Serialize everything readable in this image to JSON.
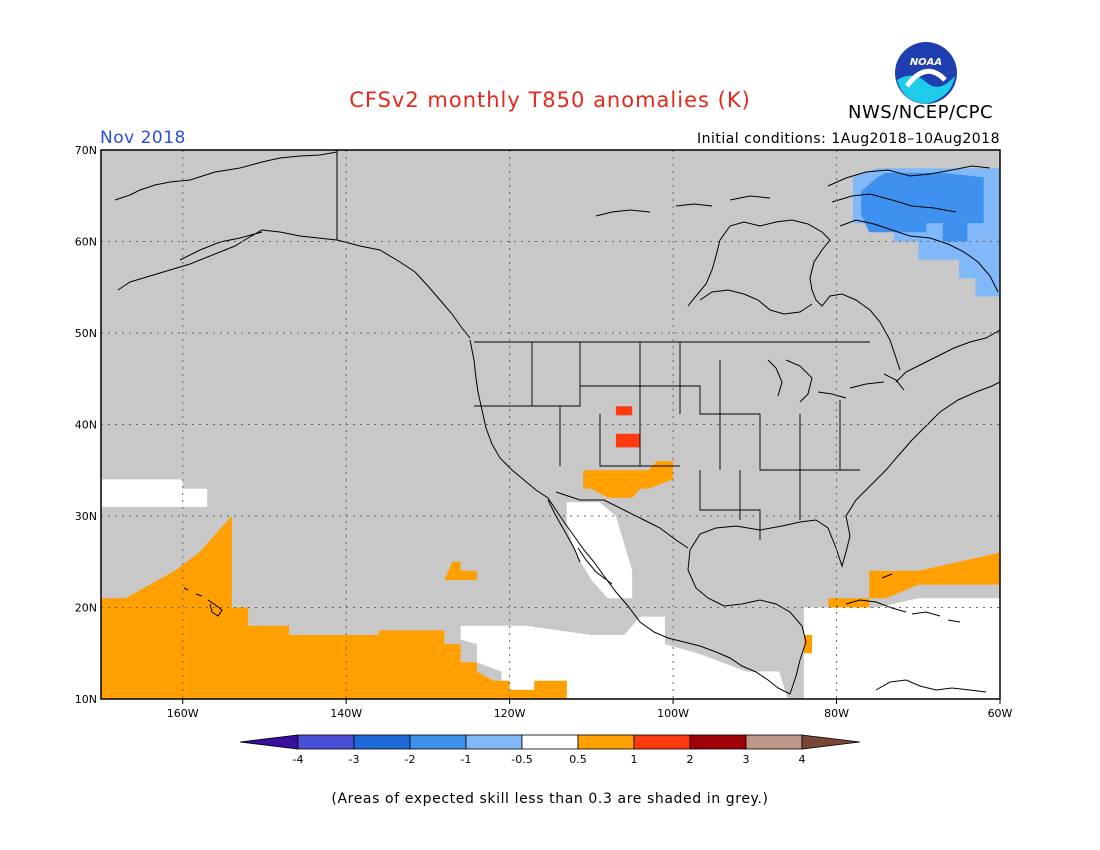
{
  "title": "CFSv2 monthly T850 anomalies (K)",
  "agency": "NWS/NCEP/CPC",
  "logo_text": "NOAA",
  "period": "Nov 2018",
  "initial_conditions": "Initial conditions: 1Aug2018–10Aug2018",
  "footnote": "(Areas of expected skill less than 0.3 are shaded in grey.)",
  "colors": {
    "title": "#e8271c",
    "period": "#2a4fd6",
    "no_skill_grey": "#c8c8c8",
    "ocean_white": "#ffffff",
    "coast": "#000000"
  },
  "map": {
    "projection": "lat-lon",
    "lon_range": [
      -170,
      -60
    ],
    "lat_range": [
      10,
      70
    ],
    "lat_labels": [
      "70N",
      "60N",
      "50N",
      "40N",
      "30N",
      "20N",
      "10N"
    ],
    "lon_labels": [
      "160W",
      "140W",
      "120W",
      "100W",
      "80W",
      "60W"
    ],
    "regions": [
      {
        "name": "grey-no-skill",
        "category": "grey",
        "polygon": [
          [
            -170,
            70
          ],
          [
            -60,
            70
          ],
          [
            -60,
            10
          ],
          [
            -170,
            10
          ]
        ]
      },
      {
        "name": "white-subtropical-pacific",
        "category": "white",
        "polygon": [
          [
            -170,
            34
          ],
          [
            -160,
            34
          ],
          [
            -160,
            33
          ],
          [
            -157,
            33
          ],
          [
            -157,
            31
          ],
          [
            -170,
            31
          ]
        ]
      },
      {
        "name": "white-mexico-baja",
        "category": "white",
        "polygon": [
          [
            -113,
            31.5
          ],
          [
            -109,
            31.5
          ],
          [
            -107,
            30
          ],
          [
            -106,
            27
          ],
          [
            -105,
            24
          ],
          [
            -105,
            21
          ],
          [
            -108,
            21
          ],
          [
            -110,
            23
          ],
          [
            -112,
            26
          ],
          [
            -113,
            29
          ]
        ]
      },
      {
        "name": "white-east-pacific",
        "category": "white",
        "polygon": [
          [
            -126,
            18
          ],
          [
            -118,
            18
          ],
          [
            -114,
            17.5
          ],
          [
            -110,
            17
          ],
          [
            -106,
            17
          ],
          [
            -104,
            19
          ],
          [
            -101,
            19
          ],
          [
            -101,
            16
          ],
          [
            -97,
            15
          ],
          [
            -94,
            14
          ],
          [
            -91,
            13
          ],
          [
            -87,
            13
          ],
          [
            -86,
            10
          ],
          [
            -119,
            10
          ],
          [
            -121,
            12
          ],
          [
            -121,
            13
          ],
          [
            -124,
            14
          ],
          [
            -124,
            16
          ],
          [
            -126,
            16.5
          ]
        ]
      },
      {
        "name": "white-caribbean-atlantic",
        "category": "white",
        "polygon": [
          [
            -84,
            20
          ],
          [
            -75,
            20
          ],
          [
            -70,
            21
          ],
          [
            -60,
            21
          ],
          [
            -60,
            10
          ],
          [
            -84,
            10
          ]
        ]
      },
      {
        "name": "orange-hawaii-pacific",
        "category": "orange",
        "polygon": [
          [
            -170,
            21
          ],
          [
            -167,
            21
          ],
          [
            -165,
            22
          ],
          [
            -163,
            23
          ],
          [
            -161,
            24
          ],
          [
            -158,
            26
          ],
          [
            -156,
            28
          ],
          [
            -154,
            30
          ],
          [
            -154,
            20
          ],
          [
            -152,
            20
          ],
          [
            -152,
            18
          ],
          [
            -147,
            18
          ],
          [
            -147,
            17
          ],
          [
            -136,
            17
          ],
          [
            -136,
            17.5
          ],
          [
            -128,
            17.5
          ],
          [
            -128,
            16
          ],
          [
            -126,
            16
          ],
          [
            -126,
            14
          ],
          [
            -124,
            14
          ],
          [
            -124,
            13
          ],
          [
            -122,
            12
          ],
          [
            -120,
            12
          ],
          [
            -120,
            11
          ],
          [
            -117,
            11
          ],
          [
            -117,
            12
          ],
          [
            -113,
            12
          ],
          [
            -113,
            10
          ],
          [
            -170,
            10
          ]
        ]
      },
      {
        "name": "orange-subtropical-blob",
        "category": "orange",
        "polygon": [
          [
            -127,
            25
          ],
          [
            -126,
            25
          ],
          [
            -126,
            24
          ],
          [
            -124,
            24
          ],
          [
            -124,
            23
          ],
          [
            -128,
            23
          ]
        ]
      },
      {
        "name": "orange-southwest-us",
        "category": "orange",
        "polygon": [
          [
            -111,
            35
          ],
          [
            -103,
            35
          ],
          [
            -102,
            36
          ],
          [
            -100,
            36
          ],
          [
            -100,
            34
          ],
          [
            -103,
            33
          ],
          [
            -104,
            33
          ],
          [
            -105,
            32
          ],
          [
            -108,
            32
          ],
          [
            -110,
            33
          ],
          [
            -111,
            33
          ]
        ]
      },
      {
        "name": "orange-subtropical-atlantic",
        "category": "orange",
        "polygon": [
          [
            -76,
            24
          ],
          [
            -70,
            24
          ],
          [
            -65,
            25
          ],
          [
            -60,
            26
          ],
          [
            -60,
            22.5
          ],
          [
            -70,
            22.5
          ],
          [
            -74,
            21
          ],
          [
            -81,
            21
          ],
          [
            -81,
            20
          ],
          [
            -76,
            20
          ]
        ]
      },
      {
        "name": "orange-central-america",
        "category": "orange",
        "polygon": [
          [
            -84,
            17
          ],
          [
            -83,
            17
          ],
          [
            -83,
            15
          ],
          [
            -84,
            15
          ]
        ]
      },
      {
        "name": "red-colorado-upper",
        "category": "red",
        "polygon": [
          [
            -107,
            42
          ],
          [
            -105,
            42
          ],
          [
            -105,
            41
          ],
          [
            -107,
            41
          ]
        ]
      },
      {
        "name": "red-colorado-lower",
        "category": "red",
        "polygon": [
          [
            -107,
            39
          ],
          [
            -104,
            39
          ],
          [
            -104,
            37.5
          ],
          [
            -107,
            37.5
          ]
        ]
      },
      {
        "name": "light-blue-canada",
        "category": "light_blue",
        "polygon": [
          [
            -75,
            68
          ],
          [
            -70,
            68
          ],
          [
            -64,
            68
          ],
          [
            -60,
            68
          ],
          [
            -60,
            54
          ],
          [
            -63,
            54
          ],
          [
            -63,
            56
          ],
          [
            -65,
            56
          ],
          [
            -65,
            58
          ],
          [
            -70,
            58
          ],
          [
            -70,
            60
          ],
          [
            -73,
            60
          ],
          [
            -73,
            62
          ],
          [
            -78,
            62
          ],
          [
            -78,
            64
          ],
          [
            -78,
            67
          ]
        ]
      },
      {
        "name": "medium-blue-canada",
        "category": "medium_blue",
        "polygon": [
          [
            -74,
            67.5
          ],
          [
            -67,
            67.5
          ],
          [
            -62,
            67
          ],
          [
            -62,
            62
          ],
          [
            -64,
            62
          ],
          [
            -64,
            60
          ],
          [
            -67,
            60
          ],
          [
            -67,
            62
          ],
          [
            -69,
            62
          ],
          [
            -69,
            61
          ],
          [
            -76,
            61
          ],
          [
            -77,
            63
          ],
          [
            -77,
            65.5
          ],
          [
            -75,
            67
          ]
        ]
      }
    ]
  },
  "legend": {
    "ticks": [
      "-4",
      "-3",
      "-2",
      "-1",
      "-0.5",
      "0.5",
      "1",
      "2",
      "3",
      "4"
    ],
    "colors": [
      "#3a0fa0",
      "#4a4fd8",
      "#1e6ad8",
      "#3e91ee",
      "#80b8f8",
      "#ffffff",
      "#ff9f00",
      "#ff3a10",
      "#a0000a",
      "#c09888",
      "#7a4636"
    ]
  }
}
